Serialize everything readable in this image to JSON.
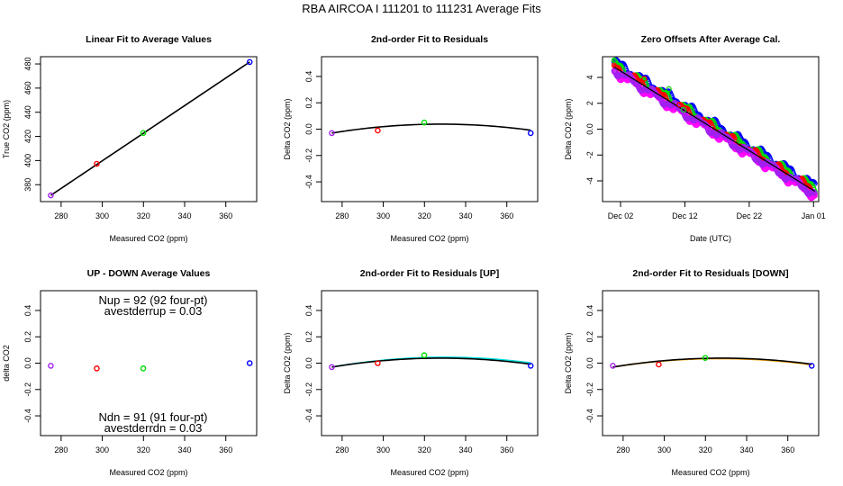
{
  "main_title": "RBA   AIRCOA I   111201 to 111231   Average Fits",
  "colors": {
    "purple": "#a020f0",
    "red": "#ff0000",
    "green": "#00dd00",
    "blue": "#0000ff",
    "black": "#000000",
    "cyan": "#00dddd",
    "orange": "#ffa500",
    "magenta": "#ff00ff"
  },
  "chart_data": [
    {
      "id": "p1",
      "type": "scatter",
      "title": "Linear Fit to Average Values",
      "xlabel": "Measured CO2 (ppm)",
      "ylabel": "True CO2 (ppm)",
      "xlim": [
        270,
        375
      ],
      "ylim": [
        366,
        486
      ],
      "xticks": [
        280,
        300,
        320,
        340,
        360
      ],
      "yticks": [
        380,
        400,
        420,
        440,
        460,
        480
      ],
      "points": [
        {
          "x": 275.0,
          "y": 371.2,
          "color": "purple"
        },
        {
          "x": 297.3,
          "y": 397.3,
          "color": "red"
        },
        {
          "x": 319.9,
          "y": 422.8,
          "color": "green"
        },
        {
          "x": 371.6,
          "y": 481.6,
          "color": "blue"
        }
      ],
      "lines": [
        {
          "kind": "linear",
          "x0": 275.0,
          "x1": 371.6,
          "y0": 371.2,
          "y1": 481.6,
          "color": "black"
        }
      ]
    },
    {
      "id": "p2",
      "type": "scatter",
      "title": "2nd-order Fit to Residuals",
      "xlabel": "Measured CO2 (ppm)",
      "ylabel": "Delta CO2 (ppm)",
      "xlim": [
        270,
        375
      ],
      "ylim": [
        -0.55,
        0.55
      ],
      "xticks": [
        280,
        300,
        320,
        340,
        360
      ],
      "yticks": [
        -0.4,
        -0.2,
        0.0,
        0.2,
        0.4
      ],
      "points": [
        {
          "x": 275.0,
          "y": -0.03,
          "color": "purple"
        },
        {
          "x": 297.3,
          "y": -0.01,
          "color": "red"
        },
        {
          "x": 319.9,
          "y": 0.05,
          "color": "green"
        },
        {
          "x": 371.6,
          "y": -0.03,
          "color": "blue"
        }
      ],
      "lines": [
        {
          "kind": "quadratic",
          "x0": 275.0,
          "x1": 371.6,
          "vertex_x": 328,
          "vertex_y": 0.038,
          "end_y": -0.03,
          "color": "black"
        }
      ]
    },
    {
      "id": "p3",
      "type": "scatter",
      "title": "Zero Offsets After Average Cal.",
      "xlabel": "Date (UTC)",
      "ylabel": "Delta CO2 (ppm)",
      "xlim": [
        -1.8,
        31.8
      ],
      "ylim": [
        -5.6,
        5.6
      ],
      "xticks": [
        1,
        11,
        21,
        31
      ],
      "xticklabels": [
        "Dec 02",
        "Dec 12",
        "Dec 22",
        "Jan 01"
      ],
      "yticks": [
        -4,
        -2,
        0,
        2,
        4
      ],
      "trend": {
        "x0": 0,
        "x1": 31.2,
        "y0": 4.8,
        "y1": -4.8
      },
      "bands": [
        {
          "color": "blue",
          "offset": 0.4
        },
        {
          "color": "green",
          "offset": 0.2
        },
        {
          "color": "red",
          "offset": 0.0
        },
        {
          "color": "magenta",
          "offset": -0.35
        },
        {
          "color": "purple",
          "offset": -0.2
        }
      ],
      "outliers": [
        {
          "x": 4.7,
          "y": 3.9,
          "color": "red"
        },
        {
          "x": 8.5,
          "y": 3.1,
          "color": "green"
        },
        {
          "x": 10.2,
          "y": 1.9,
          "color": "red"
        },
        {
          "x": 10.8,
          "y": 1.5,
          "color": "green"
        },
        {
          "x": 19.5,
          "y": -0.9,
          "color": "green"
        }
      ]
    },
    {
      "id": "p4",
      "type": "scatter",
      "title": "UP - DOWN Average Values",
      "xlabel": "Measured CO2 (ppm)",
      "ylabel": "delta CO2",
      "xlim": [
        270,
        375
      ],
      "ylim": [
        -0.55,
        0.55
      ],
      "xticks": [
        280,
        300,
        320,
        340,
        360
      ],
      "yticks": [
        -0.4,
        -0.2,
        0.0,
        0.2,
        0.4
      ],
      "points": [
        {
          "x": 275.0,
          "y": -0.02,
          "color": "purple"
        },
        {
          "x": 297.3,
          "y": -0.04,
          "color": "red"
        },
        {
          "x": 319.9,
          "y": -0.04,
          "color": "green"
        },
        {
          "x": 371.6,
          "y": 0.0,
          "color": "blue"
        }
      ],
      "annotations_top": [
        "Nup = 92 (92 four-pt)",
        "avestderrup =  0.03"
      ],
      "annotations_bottom": [
        "Ndn = 91 (91 four-pt)",
        "avestderrdn =  0.03"
      ]
    },
    {
      "id": "p5",
      "type": "scatter",
      "title": "2nd-order Fit to Residuals [UP]",
      "xlabel": "Measured CO2 (ppm)",
      "ylabel": "Delta CO2 (ppm)",
      "xlim": [
        270,
        375
      ],
      "ylim": [
        -0.55,
        0.55
      ],
      "xticks": [
        280,
        300,
        320,
        340,
        360
      ],
      "yticks": [
        -0.4,
        -0.2,
        0.0,
        0.2,
        0.4
      ],
      "points": [
        {
          "x": 275.0,
          "y": -0.03,
          "color": "purple"
        },
        {
          "x": 297.3,
          "y": 0.0,
          "color": "red"
        },
        {
          "x": 319.9,
          "y": 0.06,
          "color": "green"
        },
        {
          "x": 371.6,
          "y": -0.02,
          "color": "blue"
        }
      ],
      "lines": [
        {
          "kind": "quadratic",
          "x0": 275.0,
          "x1": 371.6,
          "vertex_x": 330,
          "vertex_y": 0.045,
          "end_y": -0.03,
          "color": "cyan"
        },
        {
          "kind": "quadratic",
          "x0": 275.0,
          "x1": 371.6,
          "vertex_x": 328,
          "vertex_y": 0.038,
          "end_y": -0.03,
          "color": "black"
        }
      ]
    },
    {
      "id": "p6",
      "type": "scatter",
      "title": "2nd-order Fit to Residuals [DOWN]",
      "xlabel": "Measured CO2 (ppm)",
      "ylabel": "Delta CO2 (ppm)",
      "xlim": [
        270,
        375
      ],
      "ylim": [
        -0.55,
        0.55
      ],
      "xticks": [
        280,
        300,
        320,
        340,
        360
      ],
      "yticks": [
        -0.4,
        -0.2,
        0.0,
        0.2,
        0.4
      ],
      "points": [
        {
          "x": 275.0,
          "y": -0.02,
          "color": "purple"
        },
        {
          "x": 297.3,
          "y": -0.01,
          "color": "red"
        },
        {
          "x": 319.9,
          "y": 0.04,
          "color": "green"
        },
        {
          "x": 371.6,
          "y": -0.02,
          "color": "blue"
        }
      ],
      "lines": [
        {
          "kind": "quadratic",
          "x0": 275.0,
          "x1": 371.6,
          "vertex_x": 327,
          "vertex_y": 0.034,
          "end_y": -0.03,
          "color": "orange"
        },
        {
          "kind": "quadratic",
          "x0": 275.0,
          "x1": 371.6,
          "vertex_x": 328,
          "vertex_y": 0.038,
          "end_y": -0.03,
          "color": "black"
        }
      ]
    }
  ]
}
